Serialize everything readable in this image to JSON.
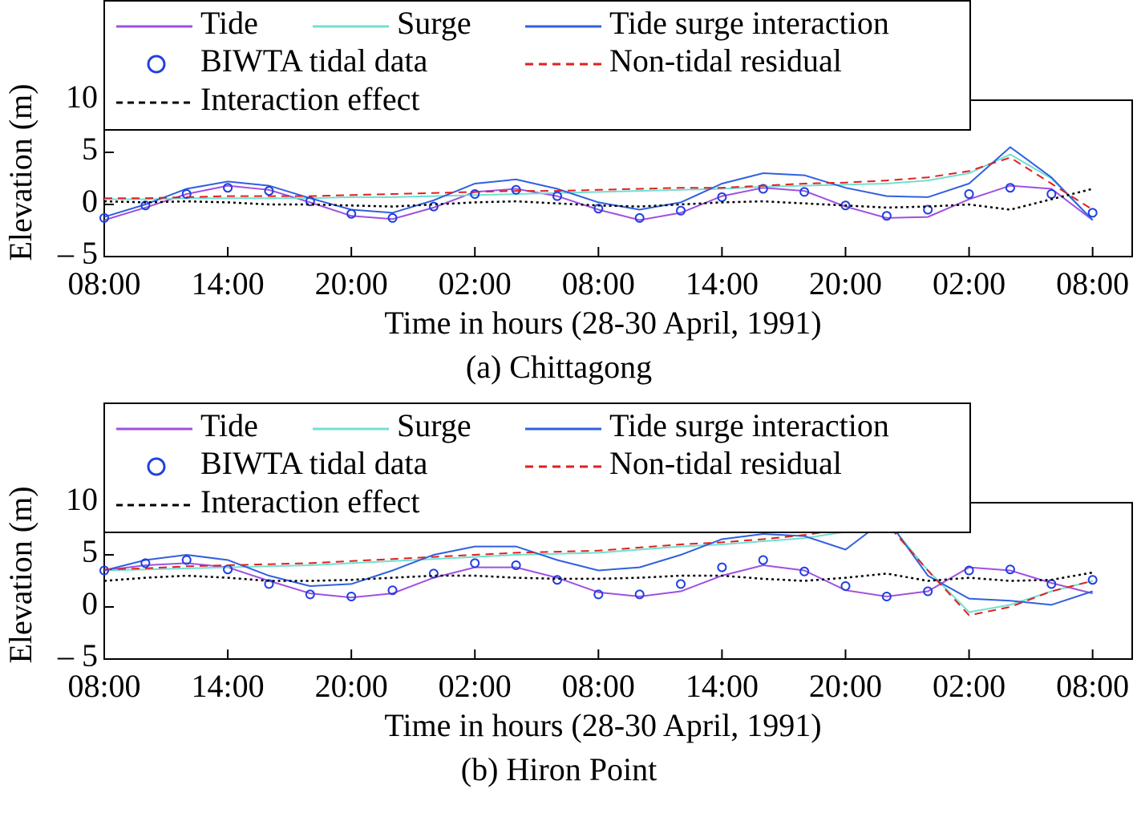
{
  "chart_data": [
    {
      "type": "line",
      "caption": "(a) Chittagong",
      "ylabel": "Elevation (m)",
      "xlabel": "Time in hours (28-30 April, 1991)",
      "xlim": [
        0,
        50
      ],
      "ylim": [
        -5,
        10
      ],
      "xticks": [
        {
          "value": 0,
          "label": "08:00"
        },
        {
          "value": 6,
          "label": "14:00"
        },
        {
          "value": 12,
          "label": "20:00"
        },
        {
          "value": 18,
          "label": "02:00"
        },
        {
          "value": 24,
          "label": "08:00"
        },
        {
          "value": 30,
          "label": "14:00"
        },
        {
          "value": 36,
          "label": "20:00"
        },
        {
          "value": 42,
          "label": "02:00"
        },
        {
          "value": 48,
          "label": "08:00"
        }
      ],
      "yticks": [
        {
          "value": -5,
          "label": "– 5"
        },
        0,
        5,
        10
      ],
      "x": [
        0,
        2,
        4,
        6,
        8,
        10,
        12,
        14,
        16,
        18,
        20,
        22,
        24,
        26,
        28,
        30,
        32,
        34,
        36,
        38,
        40,
        42,
        44,
        46,
        48
      ],
      "series": [
        {
          "name": "Tide",
          "color": "#a050e0",
          "style": "solid",
          "values": [
            -1.5,
            -0.3,
            1.0,
            1.8,
            1.4,
            0.2,
            -1.1,
            -1.4,
            -0.3,
            1.2,
            1.5,
            0.8,
            -0.5,
            -1.5,
            -0.8,
            0.8,
            1.6,
            1.3,
            -0.2,
            -1.3,
            -1.2,
            0.5,
            1.8,
            1.5,
            -1.5
          ]
        },
        {
          "name": "Surge",
          "color": "#70e0d0",
          "style": "solid",
          "values": [
            0.5,
            0.5,
            0.6,
            0.6,
            0.6,
            0.6,
            0.7,
            0.7,
            0.8,
            0.9,
            1.0,
            1.1,
            1.2,
            1.3,
            1.4,
            1.5,
            1.7,
            1.8,
            1.9,
            2.0,
            2.3,
            3.0,
            4.8,
            2.5,
            -1.5
          ]
        },
        {
          "name": "Tide surge interaction",
          "color": "#3060e0",
          "style": "solid",
          "values": [
            -1.2,
            0.0,
            1.5,
            2.2,
            1.8,
            0.6,
            -0.5,
            -0.8,
            0.4,
            2.0,
            2.4,
            1.5,
            0.2,
            -0.5,
            0.2,
            2.0,
            3.0,
            2.8,
            1.6,
            0.8,
            0.7,
            2.0,
            5.5,
            2.6,
            -1.5
          ]
        },
        {
          "name": "BIWTA tidal data",
          "color": "#2040e0",
          "style": "markers",
          "values": [
            -1.3,
            -0.1,
            1.0,
            1.6,
            1.3,
            0.3,
            -0.9,
            -1.3,
            -0.2,
            1.0,
            1.4,
            0.8,
            -0.4,
            -1.3,
            -0.6,
            0.7,
            1.5,
            1.2,
            -0.1,
            -1.1,
            -0.5,
            1.0,
            1.6,
            1.0,
            -0.8
          ]
        },
        {
          "name": "Non-tidal residual",
          "color": "#e02020",
          "style": "dashed",
          "values": [
            0.6,
            0.6,
            0.7,
            0.8,
            0.8,
            0.8,
            0.9,
            1.0,
            1.1,
            1.2,
            1.3,
            1.3,
            1.4,
            1.5,
            1.6,
            1.6,
            1.8,
            2.0,
            2.1,
            2.3,
            2.6,
            3.2,
            4.5,
            2.0,
            -0.5
          ]
        },
        {
          "name": "Interaction effect",
          "color": "#000000",
          "style": "dotted",
          "values": [
            0.3,
            0.2,
            0.3,
            0.2,
            0.0,
            0.0,
            -0.1,
            -0.2,
            0.0,
            0.2,
            0.3,
            0.1,
            -0.1,
            -0.2,
            0.0,
            0.2,
            0.3,
            0.1,
            -0.1,
            -0.3,
            -0.2,
            0.0,
            -0.5,
            0.5,
            1.5
          ]
        }
      ]
    },
    {
      "type": "line",
      "caption": "(b) Hiron Point",
      "ylabel": "Elevation (m)",
      "xlabel": "Time in hours (28-30 April, 1991)",
      "xlim": [
        0,
        50
      ],
      "ylim": [
        -5,
        10
      ],
      "xticks": [
        {
          "value": 0,
          "label": "08:00"
        },
        {
          "value": 6,
          "label": "14:00"
        },
        {
          "value": 12,
          "label": "20:00"
        },
        {
          "value": 18,
          "label": "02:00"
        },
        {
          "value": 24,
          "label": "08:00"
        },
        {
          "value": 30,
          "label": "14:00"
        },
        {
          "value": 36,
          "label": "20:00"
        },
        {
          "value": 42,
          "label": "02:00"
        },
        {
          "value": 48,
          "label": "08:00"
        }
      ],
      "yticks": [
        {
          "value": -5,
          "label": "– 5"
        },
        0,
        5,
        10
      ],
      "x": [
        0,
        2,
        4,
        6,
        8,
        10,
        12,
        14,
        16,
        18,
        20,
        22,
        24,
        26,
        28,
        30,
        32,
        34,
        36,
        38,
        40,
        42,
        44,
        46,
        48
      ],
      "series": [
        {
          "name": "Tide",
          "color": "#a050e0",
          "style": "solid",
          "values": [
            3.5,
            4.0,
            4.2,
            3.8,
            2.5,
            1.3,
            0.9,
            1.3,
            2.8,
            3.8,
            3.8,
            2.8,
            1.4,
            1.0,
            1.5,
            3.0,
            4.0,
            3.5,
            1.6,
            1.0,
            1.5,
            3.8,
            3.5,
            2.3,
            1.3
          ]
        },
        {
          "name": "Surge",
          "color": "#70e0d0",
          "style": "solid",
          "values": [
            3.5,
            3.6,
            3.7,
            3.8,
            3.9,
            4.0,
            4.2,
            4.4,
            4.6,
            4.8,
            5.0,
            5.1,
            5.2,
            5.5,
            5.8,
            6.0,
            6.3,
            6.6,
            7.2,
            8.3,
            3.5,
            -0.5,
            0.2,
            1.5,
            2.5
          ]
        },
        {
          "name": "Tide surge interaction",
          "color": "#3060e0",
          "style": "solid",
          "values": [
            3.5,
            4.5,
            5.0,
            4.5,
            3.0,
            2.0,
            2.2,
            3.5,
            5.0,
            5.8,
            5.8,
            4.5,
            3.5,
            3.8,
            5.0,
            6.5,
            7.0,
            6.8,
            5.5,
            8.5,
            3.0,
            0.8,
            0.6,
            0.2,
            1.5
          ]
        },
        {
          "name": "BIWTA tidal data",
          "color": "#2040e0",
          "style": "markers",
          "values": [
            3.5,
            4.2,
            4.5,
            3.6,
            2.2,
            1.2,
            1.0,
            1.6,
            3.2,
            4.2,
            4.0,
            2.6,
            1.2,
            1.2,
            2.2,
            3.8,
            4.5,
            3.4,
            2.0,
            1.0,
            1.5,
            3.5,
            3.6,
            2.2,
            2.6
          ]
        },
        {
          "name": "Non-tidal residual",
          "color": "#e02020",
          "style": "dashed",
          "values": [
            3.6,
            3.7,
            3.9,
            4.0,
            4.1,
            4.2,
            4.4,
            4.6,
            4.8,
            5.0,
            5.2,
            5.3,
            5.4,
            5.7,
            6.0,
            6.2,
            6.5,
            6.9,
            7.5,
            8.0,
            3.5,
            -0.8,
            0.0,
            1.5,
            2.5
          ]
        },
        {
          "name": "Interaction effect",
          "color": "#000000",
          "style": "dotted",
          "values": [
            2.5,
            2.8,
            3.0,
            2.8,
            2.5,
            2.5,
            2.6,
            2.8,
            3.0,
            3.0,
            2.8,
            2.7,
            2.7,
            2.8,
            3.0,
            3.0,
            2.7,
            2.5,
            2.8,
            3.2,
            2.5,
            2.8,
            2.5,
            2.6,
            3.3
          ]
        }
      ]
    }
  ]
}
